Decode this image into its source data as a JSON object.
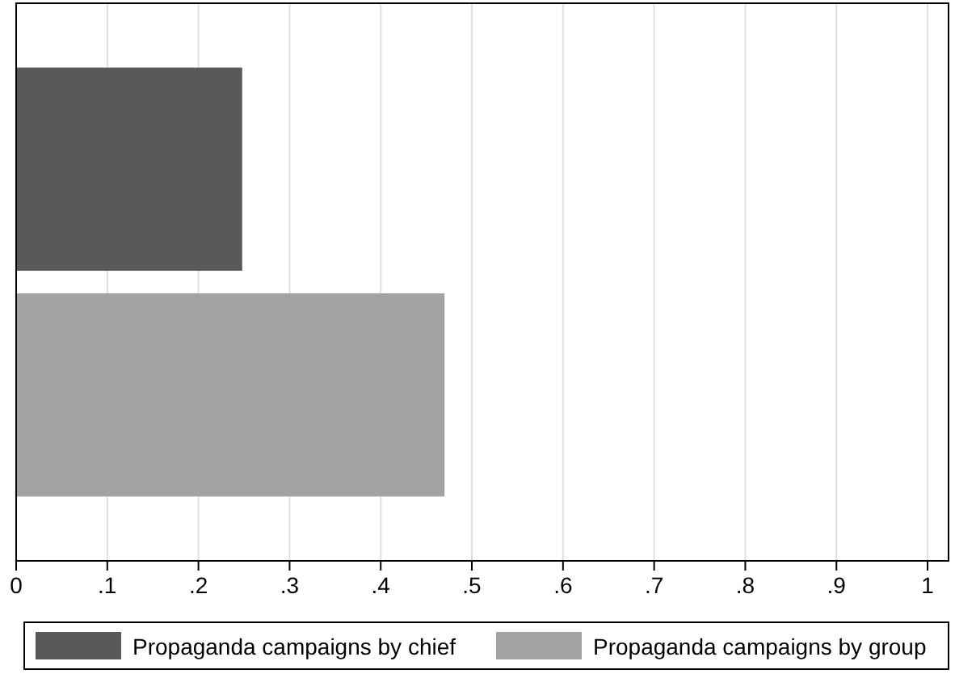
{
  "chart_data": {
    "type": "bar",
    "orientation": "horizontal",
    "categories": [
      null
    ],
    "series": [
      {
        "name": "Propaganda campaigns by chief",
        "color": "#595959",
        "values": [
          0.248
        ]
      },
      {
        "name": "Propaganda campaigns by group",
        "color": "#a3a3a3",
        "values": [
          0.47
        ]
      }
    ],
    "xlim": [
      0,
      1.023
    ],
    "xticks": [
      0,
      {
        "value": 0.1,
        "label": ".1"
      },
      {
        "value": 0.2,
        "label": ".2"
      },
      {
        "value": 0.3,
        "label": ".3"
      },
      {
        "value": 0.4,
        "label": ".4"
      },
      {
        "value": 0.5,
        "label": ".5"
      },
      {
        "value": 0.6,
        "label": ".6"
      },
      {
        "value": 0.7,
        "label": ".7"
      },
      {
        "value": 0.8,
        "label": ".8"
      },
      {
        "value": 0.9,
        "label": ".9"
      },
      1
    ],
    "grid": "x",
    "legend": "bottom"
  }
}
